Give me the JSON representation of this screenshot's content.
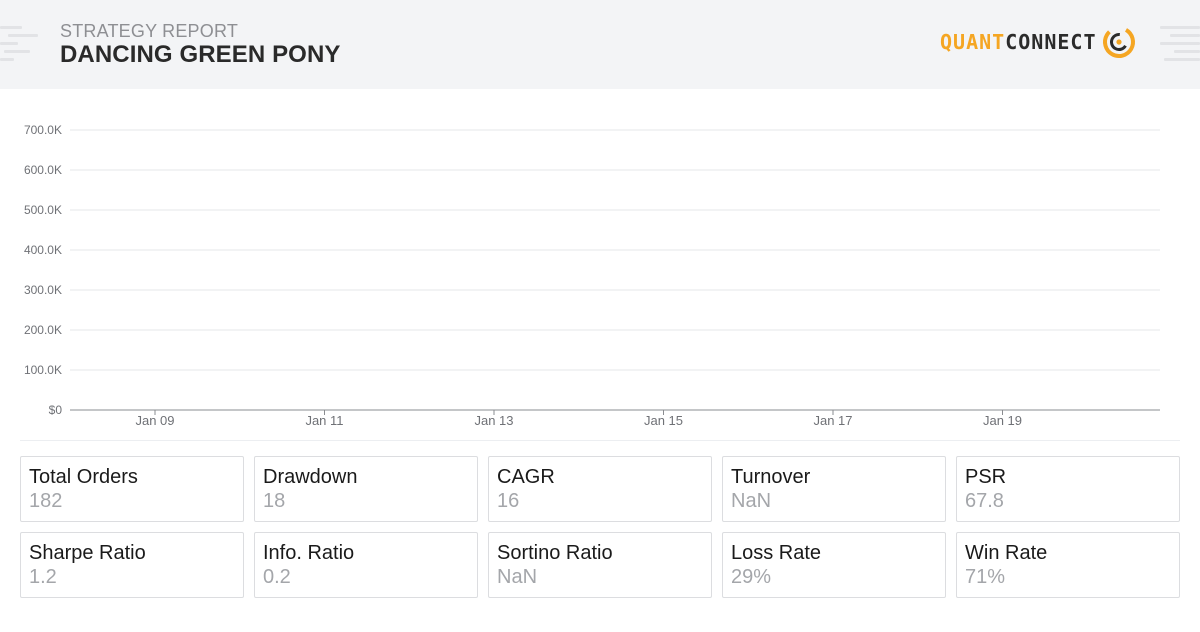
{
  "header": {
    "kicker": "STRATEGY REPORT",
    "title": "DANCING GREEN PONY",
    "logo": {
      "part1": "QUANT",
      "part2": "CONNECT",
      "icon": "quantconnect-logo-icon",
      "accent": "#f5a623"
    }
  },
  "chart_data": {
    "type": "line",
    "title": "",
    "xlabel": "",
    "ylabel": "",
    "y_ticks": [
      "$0",
      "100.0K",
      "200.0K",
      "300.0K",
      "400.0K",
      "500.0K",
      "600.0K",
      "700.0K"
    ],
    "x_ticks": [
      "Jan 09",
      "Jan 11",
      "Jan 13",
      "Jan 15",
      "Jan 17",
      "Jan 19"
    ],
    "ylim": [
      0,
      700000
    ],
    "grid": true,
    "series": []
  },
  "stats": [
    {
      "label": "Total Orders",
      "value": "182"
    },
    {
      "label": "Drawdown",
      "value": "18"
    },
    {
      "label": "CAGR",
      "value": "16"
    },
    {
      "label": "Turnover",
      "value": "NaN"
    },
    {
      "label": "PSR",
      "value": "67.8"
    },
    {
      "label": "Sharpe Ratio",
      "value": "1.2"
    },
    {
      "label": "Info. Ratio",
      "value": "0.2"
    },
    {
      "label": "Sortino Ratio",
      "value": "NaN"
    },
    {
      "label": "Loss Rate",
      "value": "29%"
    },
    {
      "label": "Win Rate",
      "value": "71%"
    }
  ]
}
